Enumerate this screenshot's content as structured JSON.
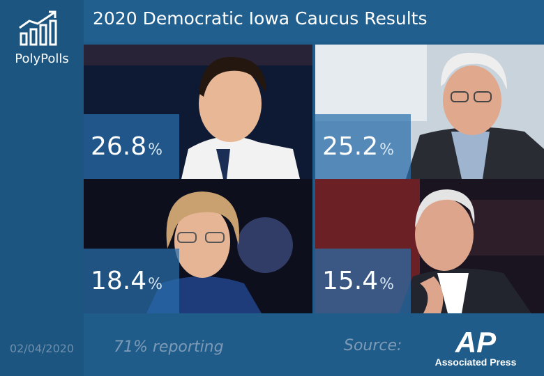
{
  "brand": {
    "name": "PolyPolls",
    "logo_icon": "rising-bar-chart-icon"
  },
  "date": "02/04/2020",
  "colors": {
    "background": "#1f5c8a",
    "badge": "#286eaa",
    "text": "#ffffff",
    "muted": "#7d9ab6"
  },
  "chart_data": {
    "type": "table",
    "title": "2020 Democratic Iowa Caucus Results",
    "unit": "%",
    "categories": [
      "",
      "",
      "",
      ""
    ],
    "values": [
      26.8,
      25.2,
      18.4,
      15.4
    ],
    "value_labels": [
      "26.8",
      "25.2",
      "18.4",
      "15.4"
    ],
    "annotations": [
      "71% reporting"
    ]
  },
  "footer": {
    "reporting": "71% reporting",
    "source_label": "Source:",
    "source_logo_text": "AP",
    "source_name": "Associated Press"
  }
}
